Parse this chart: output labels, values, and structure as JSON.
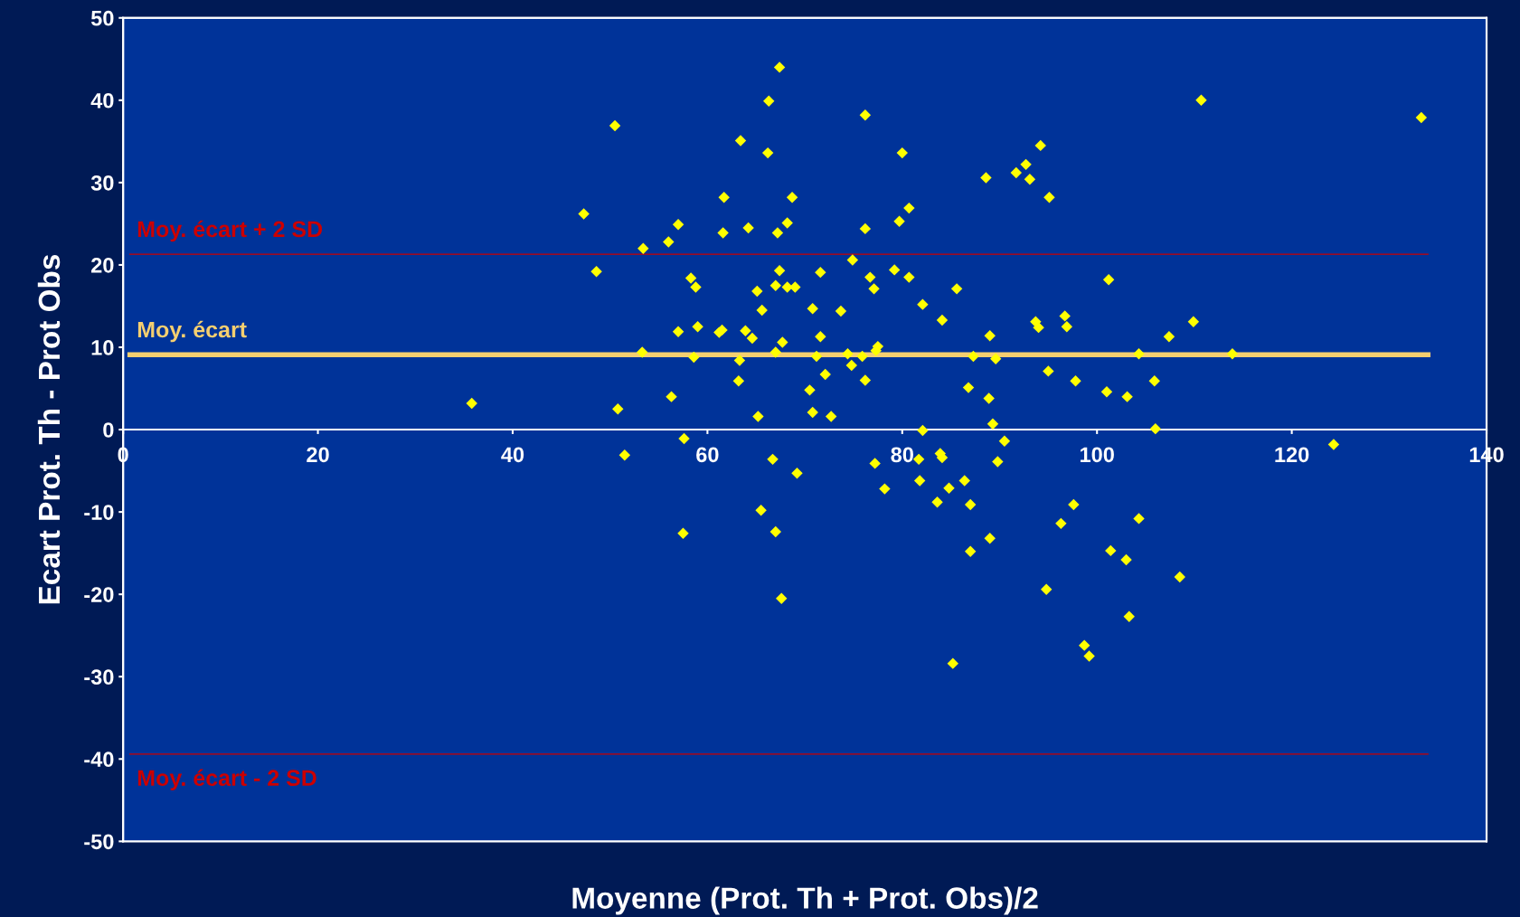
{
  "chart_data": {
    "type": "scatter",
    "xlabel": "Moyenne (Prot. Th + Prot. Obs)/2",
    "ylabel": "Ecart Prot. Th - Prot Obs",
    "xlim": [
      0,
      140
    ],
    "xticks": [
      0,
      20,
      40,
      60,
      80,
      100,
      120,
      140
    ],
    "ylim": [
      -50,
      50
    ],
    "yticks": [
      -50,
      -40,
      -30,
      -20,
      -10,
      0,
      10,
      20,
      30,
      40,
      50
    ],
    "grid": false,
    "legend": false,
    "marker": "diamond",
    "series": [
      {
        "color": "#ffff00",
        "x": [
          35.8,
          47.3,
          48.6,
          50.5,
          50.8,
          51.5,
          53.4,
          53.3,
          56.0,
          56.3,
          57.0,
          57.0,
          57.6,
          57.5,
          58.3,
          58.8,
          58.6,
          59.0,
          61.2,
          61.5,
          61.6,
          61.7,
          63.3,
          63.2,
          63.4,
          63.9,
          64.2,
          64.6,
          65.1,
          65.2,
          65.6,
          65.5,
          66.2,
          66.3,
          66.7,
          67.0,
          67.0,
          67.0,
          67.2,
          67.4,
          67.4,
          67.7,
          67.6,
          68.2,
          68.2,
          68.7,
          69.0,
          69.2,
          70.5,
          70.8,
          70.8,
          71.2,
          71.6,
          71.6,
          72.1,
          72.7,
          73.7,
          74.4,
          74.8,
          74.9,
          75.9,
          76.2,
          76.2,
          76.2,
          76.7,
          77.1,
          77.2,
          77.3,
          77.5,
          78.2,
          79.2,
          79.7,
          80.0,
          80.7,
          80.7,
          81.7,
          81.8,
          82.1,
          82.1,
          83.6,
          84.1,
          83.9,
          84.1,
          84.8,
          85.2,
          85.6,
          86.4,
          86.8,
          87.0,
          87.0,
          87.3,
          88.6,
          89.0,
          88.9,
          89.0,
          89.3,
          89.6,
          89.8,
          90.5,
          91.7,
          92.7,
          93.1,
          93.7,
          94.0,
          94.2,
          95.0,
          94.8,
          95.1,
          96.3,
          96.7,
          96.9,
          97.6,
          97.8,
          98.7,
          99.2,
          101.0,
          101.2,
          101.4,
          103.0,
          103.1,
          103.3,
          104.3,
          104.3,
          105.9,
          106.0,
          107.4,
          108.5,
          109.9,
          110.7,
          113.9,
          124.3,
          133.3
        ],
        "values": [
          3.2,
          26.2,
          19.2,
          36.9,
          2.5,
          -3.1,
          22.0,
          9.4,
          22.8,
          4.0,
          24.9,
          11.9,
          -1.1,
          -12.6,
          18.4,
          17.3,
          8.8,
          12.5,
          11.8,
          12.1,
          23.9,
          28.2,
          8.4,
          5.9,
          35.1,
          12.0,
          24.5,
          11.1,
          16.8,
          1.6,
          14.5,
          -9.8,
          33.6,
          39.9,
          -3.6,
          17.5,
          9.4,
          -12.4,
          23.9,
          44.0,
          19.3,
          10.6,
          -20.5,
          25.1,
          17.3,
          28.2,
          17.3,
          -5.3,
          4.8,
          14.7,
          2.1,
          8.9,
          19.1,
          11.3,
          6.7,
          1.6,
          14.4,
          9.2,
          7.8,
          20.6,
          8.9,
          38.2,
          24.4,
          6.0,
          18.5,
          17.1,
          -4.1,
          9.6,
          10.1,
          -7.2,
          19.4,
          25.3,
          33.6,
          26.9,
          18.5,
          -3.6,
          -6.2,
          15.2,
          -0.1,
          -8.8,
          13.3,
          -2.9,
          -3.4,
          -7.1,
          -28.4,
          17.1,
          -6.2,
          5.1,
          -9.1,
          -14.8,
          8.9,
          30.6,
          11.4,
          3.8,
          -13.2,
          0.7,
          8.6,
          -3.9,
          -1.4,
          31.2,
          32.2,
          30.4,
          13.1,
          12.4,
          34.5,
          7.1,
          -19.4,
          28.2,
          -11.4,
          13.8,
          12.5,
          -9.1,
          5.9,
          -26.2,
          -27.5,
          4.6,
          18.2,
          -14.7,
          -15.8,
          4.0,
          -22.7,
          9.2,
          -10.8,
          5.9,
          0.1,
          11.3,
          -17.9,
          13.1,
          40.0,
          9.2,
          -1.8,
          37.9
        ]
      }
    ],
    "ref_lines": [
      {
        "axis": "y",
        "value": 21.3,
        "label": "Moy. écart + 2 SD",
        "color": "#cc0000"
      },
      {
        "axis": "y",
        "value": 9.1,
        "label": "Moy. écart",
        "color": "#f5cf70"
      },
      {
        "axis": "y",
        "value": -39.4,
        "label": "Moy. écart - 2 SD",
        "color": "#cc0000"
      }
    ]
  }
}
